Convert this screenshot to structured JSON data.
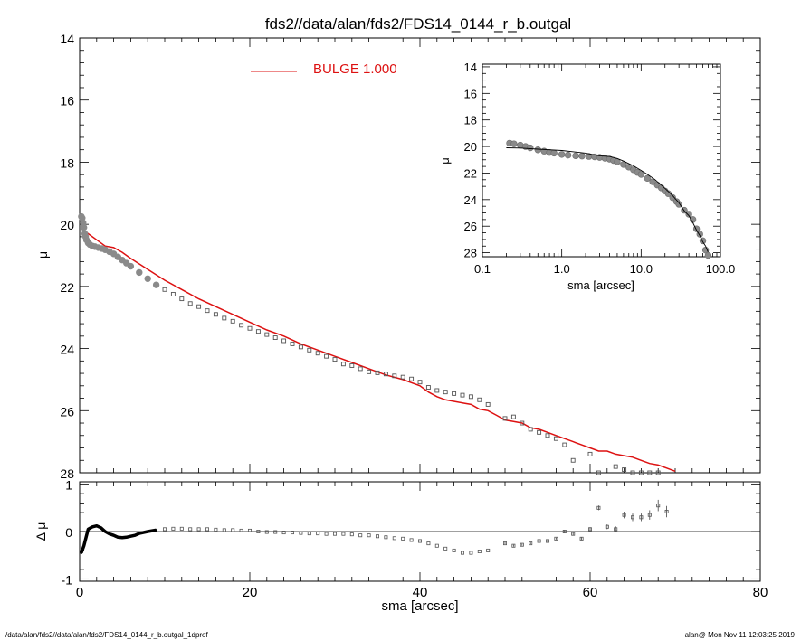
{
  "title": "fds2//data/alan/fds2/FDS14_0144_r_b.outgal",
  "footer_left": "/data/alan/fds2//data/alan/fds2/FDS14_0144_r_b.outgal_1dprof",
  "footer_right": "alan@  Mon Nov 11 12:03:25 2019",
  "colors": {
    "model": "#dd1111",
    "data": "#8a8a8a",
    "axis": "#000000"
  },
  "chart_data": [
    {
      "type": "scatter",
      "panel": "main",
      "xlabel": "sma [arcsec]",
      "ylabel": "μ",
      "xlim": [
        0,
        80
      ],
      "ylim": [
        28,
        14
      ],
      "xticks": [
        0,
        20,
        40,
        60,
        80
      ],
      "yticks": [
        14,
        16,
        18,
        20,
        22,
        24,
        26,
        28
      ],
      "legend": {
        "label": "BULGE  1.000",
        "position": "top-center"
      },
      "series": [
        {
          "name": "data",
          "x": [
            0.2,
            0.3,
            0.4,
            0.5,
            0.6,
            0.7,
            0.8,
            1.0,
            1.2,
            1.5,
            1.8,
            2.2,
            2.6,
            3.0,
            3.5,
            4.0,
            4.5,
            5.0,
            5.5,
            6.0,
            7,
            8,
            9,
            10,
            11,
            12,
            13,
            14,
            15,
            16,
            17,
            18,
            19,
            20,
            21,
            22,
            23,
            24,
            25,
            26,
            27,
            28,
            29,
            30,
            31,
            32,
            33,
            34,
            35,
            36,
            37,
            38,
            39,
            40,
            41,
            42,
            43,
            44,
            45,
            46,
            47,
            48,
            50,
            51,
            52,
            53,
            54,
            55,
            56,
            57,
            58,
            60,
            61,
            63,
            64,
            65,
            66,
            67,
            68,
            69
          ],
          "y": [
            19.75,
            19.8,
            19.95,
            20.1,
            20.3,
            20.4,
            20.5,
            20.6,
            20.65,
            20.7,
            20.72,
            20.75,
            20.78,
            20.82,
            20.88,
            20.95,
            21.05,
            21.15,
            21.25,
            21.35,
            21.55,
            21.75,
            21.95,
            22.1,
            22.25,
            22.4,
            22.55,
            22.65,
            22.78,
            22.9,
            23.02,
            23.12,
            23.25,
            23.35,
            23.45,
            23.55,
            23.65,
            23.75,
            23.85,
            23.95,
            24.05,
            24.15,
            24.25,
            24.35,
            24.5,
            24.55,
            24.65,
            24.75,
            24.78,
            24.82,
            24.88,
            24.92,
            24.98,
            25.08,
            25.25,
            25.35,
            25.4,
            25.45,
            25.5,
            25.55,
            25.65,
            25.8,
            26.25,
            26.2,
            26.4,
            26.6,
            26.7,
            26.8,
            26.9,
            27.1,
            27.6,
            27.4,
            28.2,
            27.8,
            27.9,
            28.1,
            28.0,
            28.2,
            28.3,
            28.4
          ]
        },
        {
          "name": "BULGE  1.000",
          "x": [
            0.2,
            0.5,
            1.0,
            2.0,
            3.0,
            4.0,
            5.0,
            6.0,
            8.0,
            10,
            12,
            14,
            16,
            18,
            20,
            22,
            24,
            26,
            28,
            30,
            32,
            34,
            36,
            38,
            40,
            41,
            42,
            43,
            44,
            45,
            46,
            47,
            48,
            49,
            50,
            51,
            52,
            53,
            54,
            55,
            56,
            57,
            58,
            59,
            60,
            61,
            62,
            63,
            64,
            65,
            66,
            67,
            68,
            69,
            70
          ],
          "y": [
            20.1,
            20.2,
            20.3,
            20.5,
            20.7,
            20.75,
            20.9,
            21.1,
            21.45,
            21.8,
            22.1,
            22.4,
            22.65,
            22.9,
            23.15,
            23.4,
            23.6,
            23.85,
            24.05,
            24.25,
            24.45,
            24.65,
            24.85,
            25.0,
            25.2,
            25.4,
            25.55,
            25.65,
            25.7,
            25.75,
            25.8,
            25.95,
            26.0,
            26.15,
            26.3,
            26.35,
            26.4,
            26.55,
            26.6,
            26.7,
            26.8,
            26.9,
            27.0,
            27.1,
            27.2,
            27.3,
            27.3,
            27.4,
            27.45,
            27.5,
            27.6,
            27.7,
            27.75,
            27.85,
            27.95
          ]
        }
      ]
    },
    {
      "type": "scatter",
      "panel": "residual",
      "xlabel": "sma [arcsec]",
      "ylabel": "Δ μ",
      "xlim": [
        0,
        80
      ],
      "ylim": [
        -1.05,
        1.05
      ],
      "yticks": [
        -1,
        0,
        1
      ],
      "series": [
        {
          "name": "residual",
          "x": [
            0.2,
            0.5,
            1.0,
            1.5,
            2.0,
            2.5,
            3.0,
            3.5,
            4.0,
            4.5,
            5.0,
            5.5,
            6.0,
            6.5,
            7,
            8,
            9,
            10,
            11,
            12,
            13,
            14,
            15,
            16,
            17,
            18,
            19,
            20,
            21,
            22,
            23,
            24,
            25,
            26,
            27,
            28,
            29,
            30,
            31,
            32,
            33,
            34,
            35,
            36,
            37,
            38,
            39,
            40,
            41,
            42,
            43,
            44,
            45,
            46,
            47,
            48,
            50,
            51,
            52,
            53,
            54,
            55,
            56,
            57,
            58,
            59,
            60,
            61,
            62,
            63,
            64,
            65,
            66,
            67,
            68,
            69
          ],
          "y": [
            -0.45,
            -0.3,
            0.05,
            0.1,
            0.12,
            0.08,
            0.0,
            -0.05,
            -0.08,
            -0.12,
            -0.13,
            -0.12,
            -0.1,
            -0.08,
            -0.04,
            0.0,
            0.03,
            0.05,
            0.06,
            0.06,
            0.05,
            0.05,
            0.05,
            0.04,
            0.03,
            0.03,
            0.02,
            0.02,
            0.0,
            -0.01,
            -0.01,
            -0.02,
            -0.02,
            -0.03,
            -0.04,
            -0.04,
            -0.05,
            -0.05,
            -0.05,
            -0.06,
            -0.08,
            -0.08,
            -0.1,
            -0.12,
            -0.14,
            -0.15,
            -0.18,
            -0.2,
            -0.25,
            -0.3,
            -0.36,
            -0.4,
            -0.45,
            -0.45,
            -0.42,
            -0.4,
            -0.25,
            -0.3,
            -0.28,
            -0.25,
            -0.2,
            -0.2,
            -0.15,
            0.0,
            -0.05,
            -0.15,
            0.05,
            0.5,
            0.1,
            0.05,
            0.35,
            0.3,
            0.3,
            0.35,
            0.55,
            0.42
          ],
          "err": [
            0.01,
            0.01,
            0.01,
            0.01,
            0.01,
            0.01,
            0.01,
            0.01,
            0.01,
            0.01,
            0.01,
            0.01,
            0.01,
            0.01,
            0.01,
            0.01,
            0.01,
            0.01,
            0.01,
            0.01,
            0.01,
            0.01,
            0.01,
            0.01,
            0.01,
            0.01,
            0.01,
            0.01,
            0.01,
            0.01,
            0.01,
            0.01,
            0.01,
            0.01,
            0.01,
            0.01,
            0.01,
            0.01,
            0.01,
            0.01,
            0.01,
            0.01,
            0.01,
            0.01,
            0.01,
            0.01,
            0.01,
            0.01,
            0.01,
            0.01,
            0.01,
            0.01,
            0.01,
            0.01,
            0.01,
            0.01,
            0.02,
            0.02,
            0.02,
            0.02,
            0.02,
            0.02,
            0.02,
            0.03,
            0.03,
            0.03,
            0.04,
            0.05,
            0.05,
            0.06,
            0.07,
            0.08,
            0.08,
            0.1,
            0.12,
            0.12
          ]
        }
      ]
    },
    {
      "type": "scatter",
      "panel": "inset",
      "xlabel": "sma [arcsec]",
      "ylabel": "μ",
      "xscale": "log",
      "xlim": [
        0.1,
        100
      ],
      "ylim": [
        28.3,
        13.8
      ],
      "xticks": [
        0.1,
        1.0,
        10.0,
        100.0
      ],
      "xtick_labels": [
        "0.1",
        "1.0",
        "10.0",
        "100.0"
      ],
      "yticks": [
        14,
        16,
        18,
        20,
        22,
        24,
        26,
        28
      ],
      "series": [
        {
          "name": "data",
          "x": [
            0.22,
            0.25,
            0.3,
            0.35,
            0.4,
            0.5,
            0.6,
            0.7,
            0.8,
            1.0,
            1.2,
            1.5,
            1.8,
            2.2,
            2.6,
            3.0,
            3.5,
            4.0,
            4.5,
            5.0,
            6,
            7,
            8,
            9,
            10,
            12,
            14,
            16,
            18,
            20,
            22,
            25,
            28,
            30,
            35,
            40,
            45,
            50,
            55,
            60,
            65,
            70
          ],
          "y": [
            19.75,
            19.8,
            19.9,
            20.0,
            20.1,
            20.25,
            20.35,
            20.45,
            20.5,
            20.6,
            20.65,
            20.7,
            20.72,
            20.75,
            20.78,
            20.82,
            20.88,
            20.95,
            21.05,
            21.15,
            21.35,
            21.55,
            21.75,
            21.95,
            22.1,
            22.4,
            22.65,
            22.9,
            23.12,
            23.35,
            23.55,
            23.85,
            24.15,
            24.35,
            24.8,
            25.1,
            25.5,
            26.2,
            26.6,
            27.1,
            27.8,
            28.2
          ]
        },
        {
          "name": "model",
          "x": [
            0.2,
            0.3,
            0.5,
            0.7,
            1.0,
            1.5,
            2.0,
            3.0,
            4.0,
            5.0,
            6.0,
            8.0,
            10,
            12,
            15,
            20,
            25,
            30,
            35,
            40,
            45,
            50,
            55,
            60,
            65,
            70
          ],
          "y": [
            20.1,
            20.12,
            20.2,
            20.25,
            20.3,
            20.42,
            20.5,
            20.7,
            20.75,
            20.9,
            21.1,
            21.45,
            21.8,
            22.1,
            22.5,
            23.15,
            23.7,
            24.25,
            24.85,
            25.2,
            25.75,
            26.3,
            26.7,
            27.2,
            27.5,
            27.95
          ]
        }
      ]
    }
  ]
}
